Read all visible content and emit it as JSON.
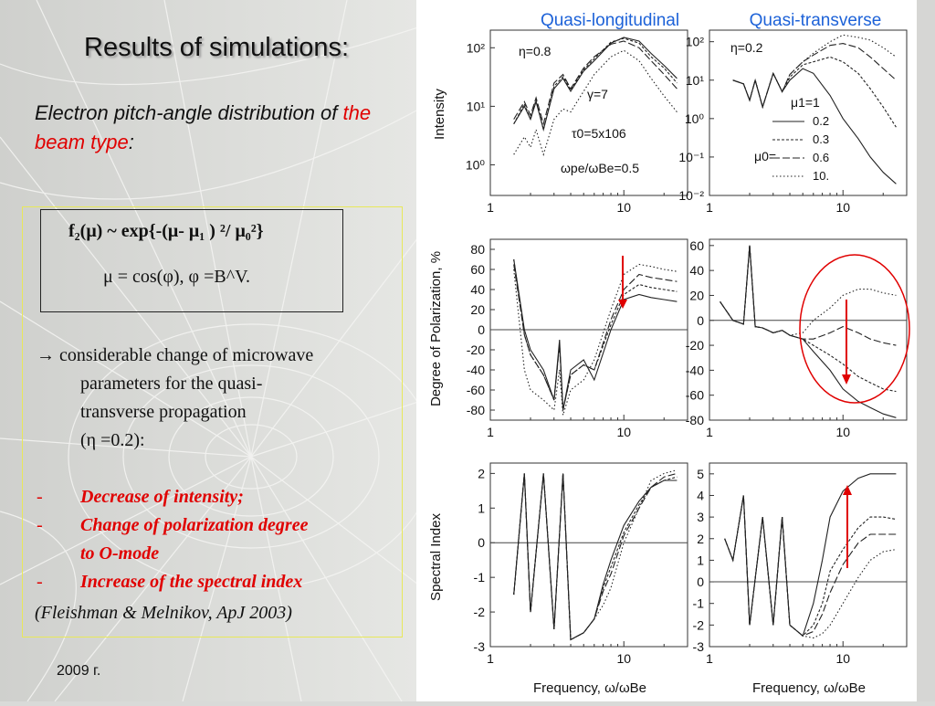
{
  "slide": {
    "title": "Results of simulations:",
    "subtitle_part1": "Electron pitch-angle distribution of ",
    "subtitle_red": "the beam type",
    "subtitle_colon": ":",
    "formula_line1": "f₂(μ) ~ exp{-(μ- μ₁ ) ²/ μ₀²}",
    "formula_line2": "μ = cos(φ),  φ =B^V.",
    "point_arrow": "→",
    "point_text_1": " considerable change of microwave",
    "point_text_2": "parameters for the quasi-",
    "point_text_3": "transverse propagation",
    "point_text_4": "(η =0.2):",
    "bullets": [
      "Decrease of intensity;",
      "Change of polarization degree",
      "to O-mode",
      "Increase of the spectral index"
    ],
    "bullet_dash": "-",
    "citation": "(Fleishman & Melnikov, ApJ 2003)",
    "year": "2009 г.",
    "accent_color": "#e00000"
  },
  "figure": {
    "col_titles": [
      "Quasi-longitudinal",
      "Quasi-transverse"
    ],
    "col_title_color": "#1d62d8",
    "row_labels": [
      "Intensity",
      "Degree of Polarization, %",
      "Spectral Index"
    ],
    "xlabel": "Frequency, ω/ωBe",
    "annot_left": {
      "eta": "η=0.8",
      "gamma": "γ=7",
      "tau": "τ0=5x106",
      "wpe": "ωpe/ωBe=0.5"
    },
    "annot_right": {
      "eta": "η=0.2",
      "mu1": "μ1=1",
      "mu0": "μ0=",
      "legend": [
        "0.2",
        "0.3",
        "0.6",
        "10."
      ]
    }
  },
  "chart_data": [
    {
      "type": "line",
      "panel": "intensity-quasi-longitudinal",
      "xscale": "log",
      "yscale": "log",
      "xlim": [
        1,
        30
      ],
      "ylim": [
        0.3,
        200
      ],
      "x": [
        1.5,
        1.8,
        2,
        2.2,
        2.5,
        3,
        3.5,
        4,
        5,
        6,
        8,
        10,
        13,
        16,
        20,
        25
      ],
      "series": [
        {
          "name": "0.2",
          "values": [
            5,
            10,
            6,
            12,
            4,
            20,
            30,
            18,
            40,
            60,
            120,
            150,
            130,
            80,
            50,
            30
          ]
        },
        {
          "name": "0.3",
          "values": [
            5,
            11,
            6,
            13,
            4,
            22,
            32,
            19,
            42,
            65,
            125,
            145,
            120,
            70,
            45,
            25
          ]
        },
        {
          "name": "0.6",
          "values": [
            6,
            12,
            7,
            14,
            5,
            25,
            35,
            20,
            45,
            70,
            115,
            130,
            100,
            60,
            35,
            20
          ]
        },
        {
          "name": "10.",
          "values": [
            1.5,
            3,
            2,
            4,
            1.5,
            6,
            9,
            8,
            18,
            35,
            70,
            90,
            60,
            30,
            15,
            8
          ]
        }
      ]
    },
    {
      "type": "line",
      "panel": "intensity-quasi-transverse",
      "xscale": "log",
      "yscale": "log",
      "xlim": [
        1,
        30
      ],
      "ylim": [
        0.01,
        200
      ],
      "x": [
        1.5,
        1.8,
        2,
        2.2,
        2.5,
        3,
        3.5,
        4,
        5,
        6,
        8,
        10,
        13,
        16,
        20,
        25
      ],
      "series": [
        {
          "name": "0.2",
          "values": [
            10,
            8,
            3,
            10,
            2,
            15,
            5,
            10,
            20,
            15,
            4,
            1,
            0.3,
            0.1,
            0.04,
            0.02
          ]
        },
        {
          "name": "0.3",
          "values": [
            10,
            8,
            3,
            10,
            2,
            15,
            5,
            12,
            25,
            30,
            40,
            30,
            15,
            6,
            2,
            0.6
          ]
        },
        {
          "name": "0.6",
          "values": [
            10,
            8,
            3,
            10,
            2,
            15,
            5,
            14,
            30,
            45,
            80,
            90,
            70,
            40,
            20,
            10
          ]
        },
        {
          "name": "10.",
          "values": [
            10,
            8,
            3,
            10,
            2,
            15,
            5,
            14,
            30,
            50,
            100,
            150,
            130,
            110,
            70,
            40
          ]
        }
      ]
    },
    {
      "type": "line",
      "panel": "polarization-quasi-longitudinal",
      "xscale": "log",
      "xlim": [
        1,
        30
      ],
      "ylim": [
        -90,
        90
      ],
      "x": [
        1.5,
        1.8,
        2,
        2.5,
        3,
        3.3,
        3.5,
        4,
        5,
        6,
        8,
        10,
        13,
        16,
        20,
        25
      ],
      "series": [
        {
          "name": "0.2",
          "values": [
            70,
            0,
            -20,
            -40,
            -70,
            -10,
            -80,
            -40,
            -30,
            -50,
            0,
            30,
            35,
            32,
            30,
            28
          ]
        },
        {
          "name": "0.3",
          "values": [
            70,
            -5,
            -25,
            -45,
            -70,
            -15,
            -80,
            -45,
            -35,
            -40,
            5,
            35,
            45,
            42,
            40,
            38
          ]
        },
        {
          "name": "0.6",
          "values": [
            65,
            -5,
            -25,
            -45,
            -70,
            -15,
            -80,
            -45,
            -35,
            -40,
            10,
            40,
            55,
            52,
            50,
            48
          ]
        },
        {
          "name": "10.",
          "values": [
            60,
            -40,
            -60,
            -70,
            -80,
            -40,
            -85,
            -60,
            -50,
            -30,
            20,
            55,
            65,
            63,
            60,
            58
          ]
        }
      ]
    },
    {
      "type": "line",
      "panel": "polarization-quasi-transverse",
      "xscale": "log",
      "xlim": [
        1,
        30
      ],
      "ylim": [
        -80,
        65
      ],
      "x": [
        1.2,
        1.5,
        1.8,
        2,
        2.2,
        2.5,
        3,
        3.5,
        4,
        5,
        6,
        8,
        10,
        13,
        16,
        20,
        25
      ],
      "series": [
        {
          "name": "0.2",
          "values": [
            15,
            0,
            -3,
            60,
            -5,
            -6,
            -10,
            -8,
            -12,
            -15,
            -25,
            -40,
            -55,
            -65,
            -70,
            -75,
            -78
          ]
        },
        {
          "name": "0.3",
          "values": [
            15,
            0,
            -3,
            60,
            -5,
            -6,
            -10,
            -8,
            -12,
            -15,
            -20,
            -28,
            -35,
            -45,
            -50,
            -55,
            -57
          ]
        },
        {
          "name": "0.6",
          "values": [
            15,
            0,
            -3,
            60,
            -5,
            -6,
            -10,
            -8,
            -12,
            -15,
            -15,
            -10,
            -5,
            -10,
            -15,
            -18,
            -20
          ]
        },
        {
          "name": "10.",
          "values": [
            15,
            0,
            -3,
            60,
            -5,
            -6,
            -10,
            -8,
            -12,
            -10,
            0,
            10,
            20,
            25,
            25,
            22,
            20
          ]
        }
      ]
    },
    {
      "type": "line",
      "panel": "spectral-index-quasi-longitudinal",
      "xscale": "log",
      "xlim": [
        1,
        30
      ],
      "ylim": [
        -3,
        2.3
      ],
      "x": [
        1.5,
        1.8,
        2,
        2.5,
        3,
        3.5,
        4,
        5,
        6,
        7,
        8,
        10,
        13,
        16,
        20,
        25
      ],
      "series": [
        {
          "name": "0.2",
          "values": [
            -1.5,
            2,
            -2,
            2,
            -2.5,
            2,
            -2.8,
            -2.6,
            -2.2,
            -1.2,
            -0.5,
            0.5,
            1.2,
            1.6,
            1.8,
            1.8
          ]
        },
        {
          "name": "0.3",
          "values": [
            -1.5,
            2,
            -2,
            2,
            -2.5,
            2,
            -2.8,
            -2.6,
            -2.2,
            -1.3,
            -0.7,
            0.3,
            1.1,
            1.6,
            1.8,
            1.9
          ]
        },
        {
          "name": "0.6",
          "values": [
            -1.5,
            2,
            -2,
            2,
            -2.5,
            2,
            -2.8,
            -2.6,
            -2.2,
            -1.4,
            -0.9,
            0.2,
            1.0,
            1.6,
            1.9,
            2.0
          ]
        },
        {
          "name": "10.",
          "values": [
            -1.5,
            2,
            -2,
            2,
            -2.5,
            2,
            -2.8,
            -2.6,
            -2.2,
            -1.8,
            -1.3,
            0,
            1.0,
            1.8,
            2.0,
            2.1
          ]
        }
      ]
    },
    {
      "type": "line",
      "panel": "spectral-index-quasi-transverse",
      "xscale": "log",
      "xlim": [
        1,
        30
      ],
      "ylim": [
        -3,
        5.5
      ],
      "x": [
        1.3,
        1.5,
        1.8,
        2,
        2.5,
        3,
        3.5,
        4,
        5,
        6,
        7,
        8,
        10,
        13,
        16,
        20,
        25
      ],
      "series": [
        {
          "name": "0.2",
          "values": [
            2,
            1,
            4,
            -2,
            3,
            -2,
            3,
            -2,
            -2.5,
            -1,
            1,
            3,
            4.2,
            4.8,
            5.0,
            5.0,
            5.0
          ]
        },
        {
          "name": "0.3",
          "values": [
            2,
            1,
            4,
            -2,
            3,
            -2,
            3,
            -2,
            -2.5,
            -2,
            -1,
            0.5,
            1.5,
            2.5,
            3.0,
            3.0,
            2.9
          ]
        },
        {
          "name": "0.6",
          "values": [
            2,
            1,
            4,
            -2,
            3,
            -2,
            3,
            -2,
            -2.5,
            -2.3,
            -1.5,
            -0.5,
            0.8,
            1.8,
            2.2,
            2.2,
            2.2
          ]
        },
        {
          "name": "10.",
          "values": [
            2,
            1,
            4,
            -2,
            3,
            -2,
            3,
            -2,
            -2.5,
            -2.6,
            -2.4,
            -2,
            -1,
            0.2,
            1.0,
            1.4,
            1.5
          ]
        }
      ]
    }
  ]
}
